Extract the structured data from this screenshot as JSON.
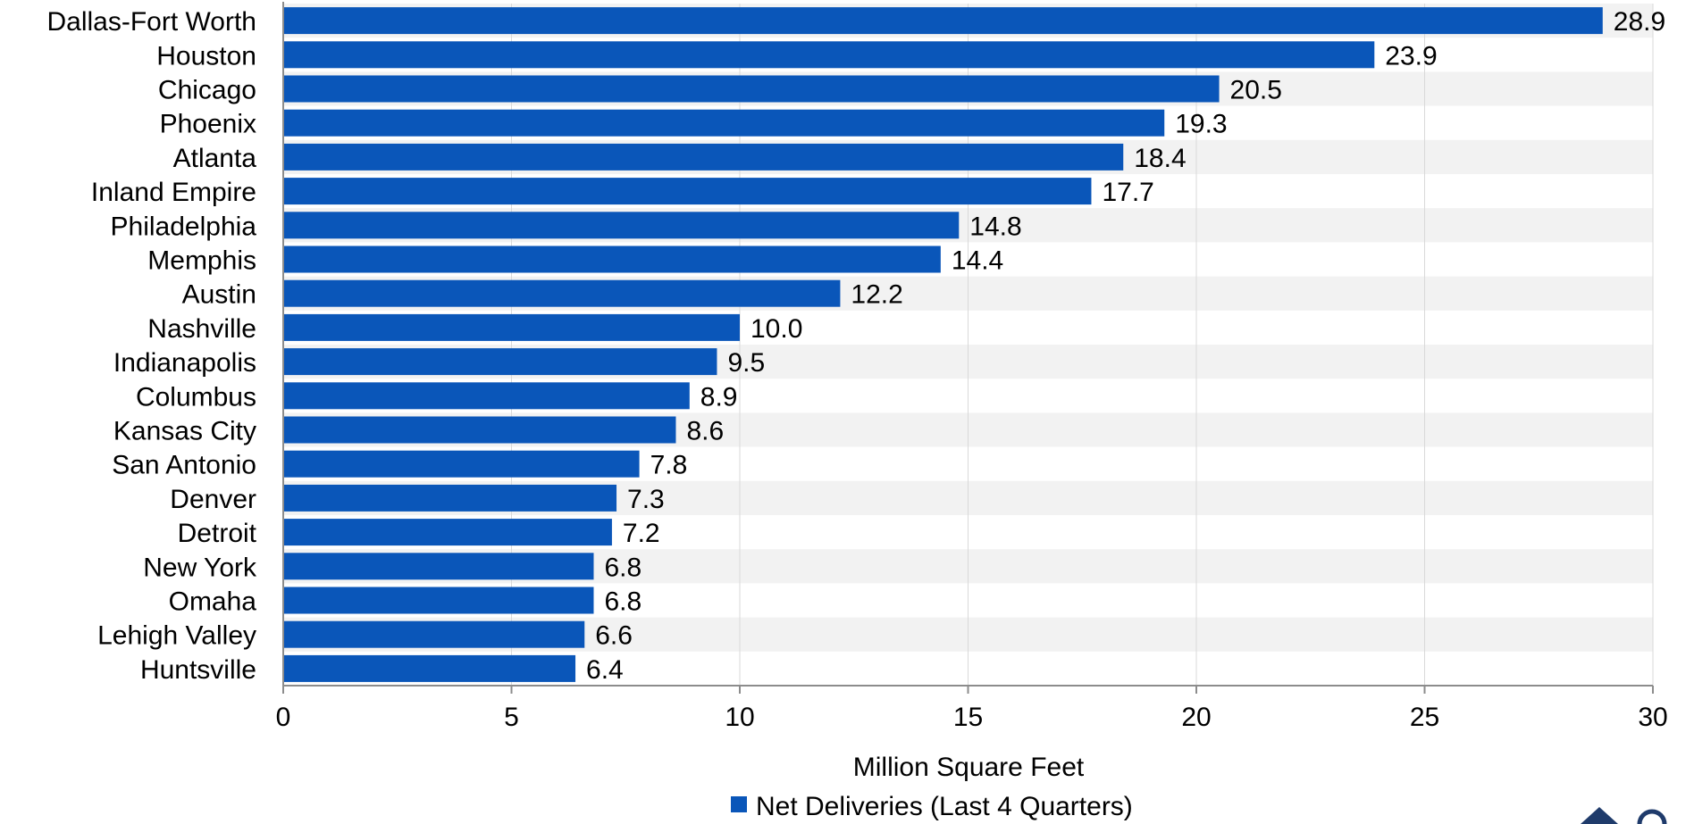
{
  "chart_data": {
    "type": "bar",
    "orientation": "horizontal",
    "categories": [
      "Dallas-Fort Worth",
      "Houston",
      "Chicago",
      "Phoenix",
      "Atlanta",
      "Inland Empire",
      "Philadelphia",
      "Memphis",
      "Austin",
      "Nashville",
      "Indianapolis",
      "Columbus",
      "Kansas City",
      "San Antonio",
      "Denver",
      "Detroit",
      "New York",
      "Omaha",
      "Lehigh Valley",
      "Huntsville"
    ],
    "series": [
      {
        "name": "Net Deliveries (Last 4 Quarters)",
        "values": [
          28.9,
          23.9,
          20.5,
          19.3,
          18.4,
          17.7,
          14.8,
          14.4,
          12.2,
          10.0,
          9.5,
          8.9,
          8.6,
          7.8,
          7.3,
          7.2,
          6.8,
          6.8,
          6.6,
          6.4
        ],
        "value_labels": [
          "28.9",
          "23.9",
          "20.5",
          "19.3",
          "18.4",
          "17.7",
          "14.8",
          "14.4",
          "12.2",
          "10.0",
          "9.5",
          "8.9",
          "8.6",
          "7.8",
          "7.3",
          "7.2",
          "6.8",
          "6.8",
          "6.6",
          "6.4"
        ]
      }
    ],
    "xlabel": "Million Square Feet",
    "ylabel": "",
    "xlim": [
      0,
      30
    ],
    "xticks": [
      "0",
      "5",
      "10",
      "15",
      "20",
      "25",
      "30"
    ],
    "grid": true,
    "band_shading": true,
    "legend_position": "bottom"
  },
  "colors": {
    "bar": "#0a56b9",
    "band": "#f2f2f2",
    "gridline": "#d9d9d9",
    "axis": "#8c8c8c",
    "logo": "#1f3b6b"
  }
}
